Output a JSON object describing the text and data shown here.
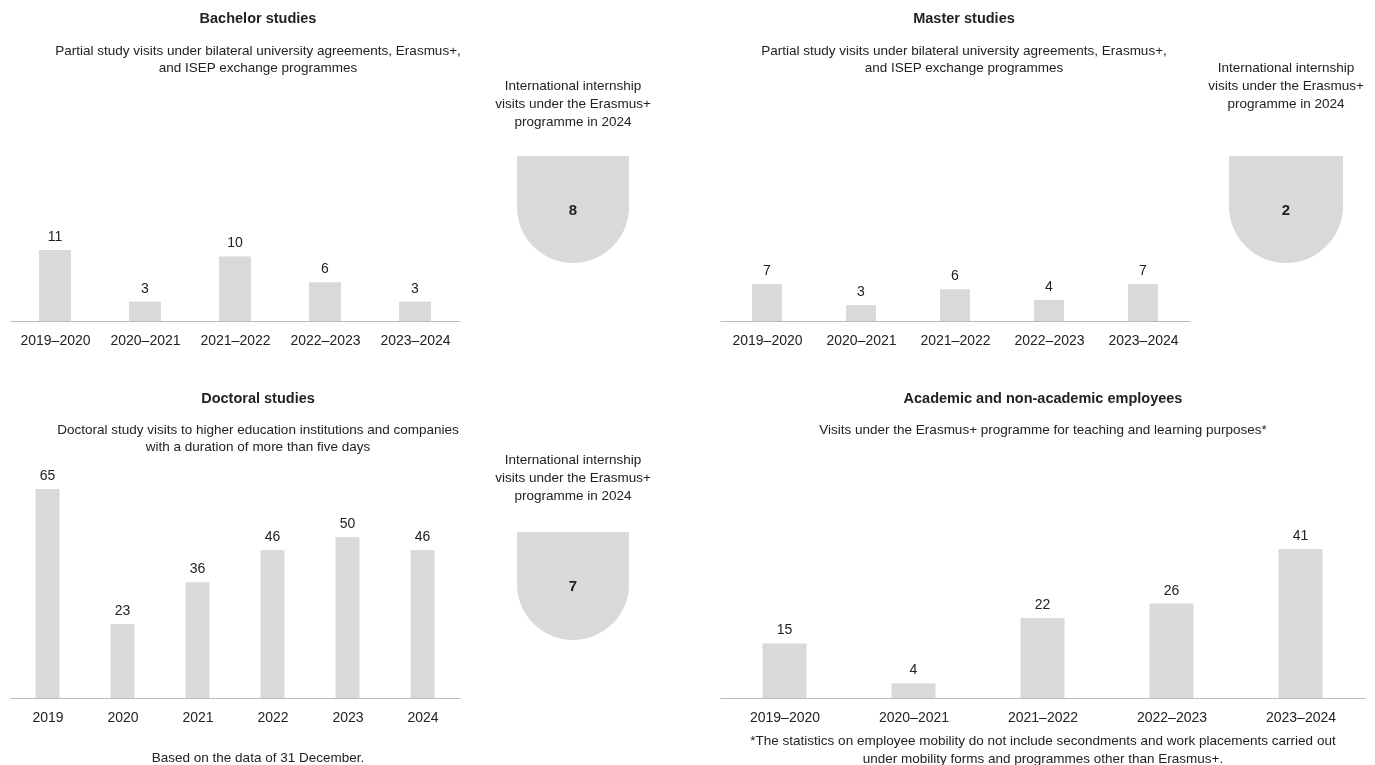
{
  "chart_data": [
    {
      "type": "bar",
      "title": "Bachelor studies",
      "subtitle": "Partial study visits under bilateral university agreements, Erasmus+, and ISEP exchange programmes",
      "categories": [
        "2019–2020",
        "2020–2021",
        "2021–2022",
        "2022–2023",
        "2023–2024"
      ],
      "values": [
        11,
        3,
        10,
        6,
        3
      ],
      "color": "#d9d9d9",
      "data_labels": true
    },
    {
      "type": "other",
      "title": "International internship visits under the Erasmus+ programme in 2024",
      "annotations": [
        "8"
      ],
      "color": "#d9d9d9"
    },
    {
      "type": "bar",
      "title": "Master studies",
      "subtitle": "Partial study visits under bilateral university agreements, Erasmus+, and ISEP exchange programmes",
      "categories": [
        "2019–2020",
        "2020–2021",
        "2021–2022",
        "2022–2023",
        "2023–2024"
      ],
      "values": [
        7,
        3,
        6,
        4,
        7
      ],
      "color": "#d9d9d9",
      "data_labels": true
    },
    {
      "type": "other",
      "title": "International internship visits under the Erasmus+ programme in 2024",
      "annotations": [
        "2"
      ],
      "color": "#d9d9d9"
    },
    {
      "type": "bar",
      "title": "Doctoral studies",
      "subtitle": "Doctoral study visits to higher education institutions and companies with a duration of more than five days",
      "categories": [
        "2019",
        "2020",
        "2021",
        "2022",
        "2023",
        "2024"
      ],
      "values": [
        65,
        23,
        36,
        46,
        50,
        46
      ],
      "color": "#d9d9d9",
      "data_labels": true,
      "annotations": [
        "Based on the data of 31 December."
      ]
    },
    {
      "type": "other",
      "title": "International internship visits under the Erasmus+ programme in 2024",
      "annotations": [
        "7"
      ],
      "color": "#d9d9d9"
    },
    {
      "type": "bar",
      "title": "Academic and non-academic employees",
      "subtitle": "Visits under the Erasmus+ programme for teaching and learning purposes*",
      "categories": [
        "2019–2020",
        "2020–2021",
        "2021–2022",
        "2022–2023",
        "2023–2024"
      ],
      "values": [
        15,
        4,
        22,
        26,
        41
      ],
      "color": "#d9d9d9",
      "data_labels": true,
      "annotations": [
        "*The statistics on employee mobility do not include secondments and work placements carried out under mobility forms and programmes other than Erasmus+."
      ]
    }
  ]
}
